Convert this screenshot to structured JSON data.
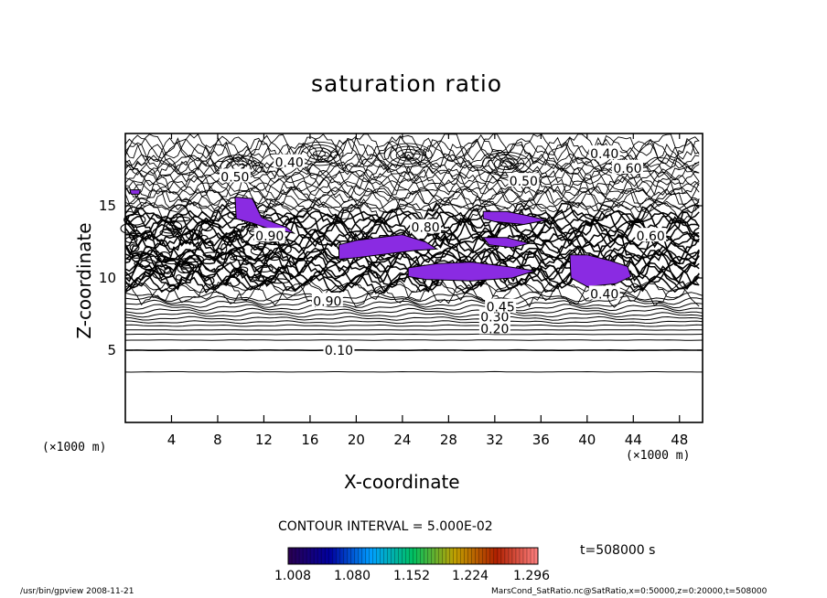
{
  "chart_data": {
    "type": "contour",
    "title": "saturation ratio",
    "xlabel": "X-coordinate",
    "ylabel": "Z-coordinate",
    "x_unit_left": "(×1000 m)",
    "x_unit_right": "(×1000 m)",
    "xlim": [
      0,
      50
    ],
    "ylim": [
      0,
      20
    ],
    "x_ticks": [
      4,
      8,
      12,
      16,
      20,
      24,
      28,
      32,
      36,
      40,
      44,
      48
    ],
    "x_tick_labels": [
      "4",
      "8",
      "12",
      "16",
      "20",
      "24",
      "28",
      "32",
      "36",
      "40",
      "44",
      "48"
    ],
    "y_ticks": [
      5,
      10,
      15
    ],
    "y_tick_labels": [
      "5",
      "10",
      "15"
    ],
    "contour_interval_text": "CONTOUR INTERVAL = 5.000E-02",
    "contour_labels": [
      {
        "text": "0.10",
        "x": 18.5,
        "z": 5.0
      },
      {
        "text": "0.20",
        "x": 32.0,
        "z": 6.5
      },
      {
        "text": "0.30",
        "x": 32.0,
        "z": 7.3
      },
      {
        "text": "0.45",
        "x": 32.5,
        "z": 8.0
      },
      {
        "text": "0.90",
        "x": 17.5,
        "z": 8.4
      },
      {
        "text": "0.40",
        "x": 14.2,
        "z": 18.0
      },
      {
        "text": "0.50",
        "x": 9.5,
        "z": 17.0
      },
      {
        "text": "0.50",
        "x": 34.5,
        "z": 16.7
      },
      {
        "text": "0.40",
        "x": 41.5,
        "z": 18.6
      },
      {
        "text": "0.60",
        "x": 43.5,
        "z": 17.6
      },
      {
        "text": "0.80",
        "x": 26.0,
        "z": 13.5
      },
      {
        "text": "0.90",
        "x": 12.5,
        "z": 12.9
      },
      {
        "text": "0.60",
        "x": 45.5,
        "z": 12.9
      },
      {
        "text": "0.40",
        "x": 41.5,
        "z": 8.9
      }
    ],
    "supersaturated_regions_color": "#8a2be2",
    "colorbar": {
      "tick_labels": [
        "1.008",
        "1.080",
        "1.152",
        "1.224",
        "1.296"
      ],
      "min": 1.008,
      "max": 1.296,
      "colors": [
        "#2a0050",
        "#0000a0",
        "#00a0ff",
        "#00c060",
        "#c0a000",
        "#b02000",
        "#ff8080"
      ]
    },
    "time_label": "t=508000 s"
  },
  "footer": {
    "left": "/usr/bin/gpview   2008-11-21",
    "right": "MarsCond_SatRatio.nc@SatRatio,x=0:50000,z=0:20000,t=508000"
  }
}
